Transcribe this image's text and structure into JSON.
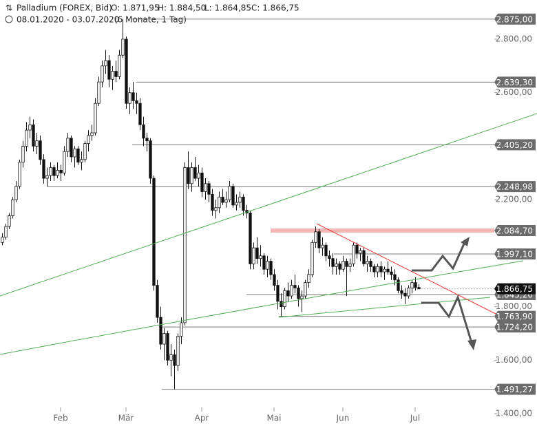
{
  "chart_data": {
    "type": "candlestick",
    "header": {
      "title": "Palladium (FOREX, Bid)",
      "open": "O: 1.871,95",
      "high": "H: 1.884,50",
      "low": "L: 1.864,85",
      "close": "C: 1.866,75",
      "range": "08.01.2020 - 03.07.2020",
      "period": "(6 Monate, 1 Tag)"
    },
    "ylim": [
      1390,
      2895
    ],
    "yticks": [
      {
        "value": 2800,
        "label": "2.800,00"
      },
      {
        "value": 2600,
        "label": "2.600,00"
      },
      {
        "value": 2200,
        "label": "2.200,00"
      },
      {
        "value": 1800,
        "label": "1.800,00"
      },
      {
        "value": 1600,
        "label": "1.600,00"
      },
      {
        "value": 1400,
        "label": "1.400,00"
      }
    ],
    "xlim": [
      0,
      143
    ],
    "xticks": [
      {
        "value": 17,
        "label": "Feb"
      },
      {
        "value": 36,
        "label": "Mär"
      },
      {
        "value": 58,
        "label": "Apr"
      },
      {
        "value": 79,
        "label": "Mai"
      },
      {
        "value": 99,
        "label": "Jun"
      },
      {
        "value": 120,
        "label": "Jul"
      }
    ],
    "levels": [
      {
        "value": 2875,
        "label": "2.875,00"
      },
      {
        "value": 2639.3,
        "label": "2.639,30"
      },
      {
        "value": 2405.2,
        "label": "2.405,20"
      },
      {
        "value": 2248.98,
        "label": "2.248,98"
      },
      {
        "value": 2084.7,
        "label": "2.084,70"
      },
      {
        "value": 1997.1,
        "label": "1.997,10"
      },
      {
        "value": 1845.2,
        "label": "1.845,20"
      },
      {
        "value": 1763.9,
        "label": "1.763,90"
      },
      {
        "value": 1724.2,
        "label": "1.724,20"
      },
      {
        "value": 1491.27,
        "label": "1.491,27"
      }
    ],
    "current": {
      "value": 1866.75,
      "label": "1.866,75"
    },
    "candles": [
      [
        2040,
        2075,
        2030,
        2060
      ],
      [
        2060,
        2110,
        2050,
        2100
      ],
      [
        2100,
        2150,
        2090,
        2140
      ],
      [
        2140,
        2210,
        2130,
        2200
      ],
      [
        2200,
        2270,
        2190,
        2250
      ],
      [
        2250,
        2350,
        2240,
        2340
      ],
      [
        2340,
        2420,
        2320,
        2400
      ],
      [
        2400,
        2490,
        2380,
        2460
      ],
      [
        2460,
        2510,
        2430,
        2480
      ],
      [
        2480,
        2500,
        2380,
        2400
      ],
      [
        2400,
        2450,
        2370,
        2420
      ],
      [
        2420,
        2440,
        2330,
        2350
      ],
      [
        2350,
        2370,
        2260,
        2280
      ],
      [
        2280,
        2320,
        2250,
        2290
      ],
      [
        2290,
        2340,
        2270,
        2320
      ],
      [
        2320,
        2330,
        2270,
        2290
      ],
      [
        2290,
        2340,
        2280,
        2310
      ],
      [
        2310,
        2330,
        2270,
        2300
      ],
      [
        2300,
        2400,
        2290,
        2380
      ],
      [
        2380,
        2450,
        2360,
        2430
      ],
      [
        2430,
        2440,
        2340,
        2360
      ],
      [
        2360,
        2400,
        2320,
        2390
      ],
      [
        2390,
        2400,
        2330,
        2340
      ],
      [
        2340,
        2380,
        2310,
        2350
      ],
      [
        2350,
        2420,
        2340,
        2410
      ],
      [
        2410,
        2460,
        2380,
        2440
      ],
      [
        2440,
        2480,
        2420,
        2450
      ],
      [
        2450,
        2580,
        2440,
        2560
      ],
      [
        2560,
        2660,
        2550,
        2640
      ],
      [
        2640,
        2720,
        2620,
        2700
      ],
      [
        2700,
        2760,
        2670,
        2720
      ],
      [
        2720,
        2740,
        2620,
        2650
      ],
      [
        2650,
        2700,
        2610,
        2680
      ],
      [
        2680,
        2720,
        2640,
        2660
      ],
      [
        2660,
        2760,
        2650,
        2740
      ],
      [
        2740,
        2875,
        2730,
        2800
      ],
      [
        2800,
        2810,
        2540,
        2560
      ],
      [
        2560,
        2620,
        2520,
        2600
      ],
      [
        2600,
        2640,
        2540,
        2570
      ],
      [
        2570,
        2600,
        2520,
        2560
      ],
      [
        2560,
        2580,
        2460,
        2480
      ],
      [
        2480,
        2510,
        2400,
        2430
      ],
      [
        2430,
        2450,
        2380,
        2420
      ],
      [
        2420,
        2430,
        2260,
        2280
      ],
      [
        2280,
        2290,
        1860,
        1880
      ],
      [
        1880,
        1900,
        1740,
        1760
      ],
      [
        1760,
        1800,
        1640,
        1660
      ],
      [
        1660,
        1720,
        1600,
        1700
      ],
      [
        1700,
        1710,
        1580,
        1600
      ],
      [
        1600,
        1660,
        1540,
        1620
      ],
      [
        1620,
        1640,
        1491.27,
        1580
      ],
      [
        1580,
        1700,
        1560,
        1690
      ],
      [
        1690,
        1760,
        1660,
        1740
      ],
      [
        1740,
        2340,
        1730,
        2320
      ],
      [
        2320,
        2380,
        2240,
        2260
      ],
      [
        2260,
        2340,
        2230,
        2320
      ],
      [
        2320,
        2360,
        2270,
        2280
      ],
      [
        2280,
        2330,
        2250,
        2300
      ],
      [
        2300,
        2320,
        2210,
        2230
      ],
      [
        2230,
        2280,
        2200,
        2260
      ],
      [
        2260,
        2270,
        2190,
        2220
      ],
      [
        2220,
        2240,
        2140,
        2160
      ],
      [
        2160,
        2200,
        2130,
        2170
      ],
      [
        2170,
        2230,
        2150,
        2210
      ],
      [
        2210,
        2240,
        2180,
        2190
      ],
      [
        2190,
        2230,
        2170,
        2200
      ],
      [
        2200,
        2270,
        2190,
        2250
      ],
      [
        2250,
        2260,
        2170,
        2180
      ],
      [
        2180,
        2220,
        2160,
        2190
      ],
      [
        2190,
        2230,
        2170,
        2210
      ],
      [
        2210,
        2220,
        2140,
        2160
      ],
      [
        2160,
        2180,
        2130,
        2150
      ],
      [
        2150,
        2160,
        1940,
        1960
      ],
      [
        1960,
        2040,
        1940,
        2020
      ],
      [
        2020,
        2060,
        1960,
        1980
      ],
      [
        1980,
        2030,
        1950,
        1990
      ],
      [
        1990,
        2000,
        1920,
        1940
      ],
      [
        1940,
        1990,
        1910,
        1970
      ],
      [
        1970,
        1980,
        1900,
        1920
      ],
      [
        1920,
        1940,
        1860,
        1880
      ],
      [
        1880,
        1900,
        1790,
        1820
      ],
      [
        1820,
        1850,
        1763.9,
        1800
      ],
      [
        1800,
        1870,
        1790,
        1860
      ],
      [
        1860,
        1890,
        1820,
        1840
      ],
      [
        1840,
        1900,
        1830,
        1880
      ],
      [
        1880,
        1920,
        1850,
        1870
      ],
      [
        1870,
        1880,
        1800,
        1830
      ],
      [
        1830,
        1860,
        1780,
        1840
      ],
      [
        1840,
        1900,
        1830,
        1890
      ],
      [
        1890,
        1940,
        1870,
        1920
      ],
      [
        1920,
        2050,
        1910,
        2040
      ],
      [
        2040,
        2100,
        2020,
        2080
      ],
      [
        2080,
        2090,
        2000,
        2020
      ],
      [
        2020,
        2060,
        1990,
        2030
      ],
      [
        2030,
        2040,
        1970,
        1990
      ],
      [
        1990,
        2010,
        1950,
        1980
      ],
      [
        1980,
        2000,
        1920,
        1950
      ],
      [
        1950,
        1980,
        1920,
        1960
      ],
      [
        1960,
        1970,
        1920,
        1940
      ],
      [
        1940,
        1990,
        1930,
        1970
      ],
      [
        1970,
        1980,
        1840,
        1950
      ],
      [
        1950,
        1980,
        1930,
        1960
      ],
      [
        1960,
        2040,
        1950,
        2030
      ],
      [
        2030,
        2040,
        1980,
        2000
      ],
      [
        2000,
        2020,
        1970,
        2010
      ],
      [
        2010,
        2020,
        1950,
        1960
      ],
      [
        1960,
        1990,
        1930,
        1970
      ],
      [
        1970,
        1980,
        1930,
        1950
      ],
      [
        1950,
        1960,
        1910,
        1930
      ],
      [
        1930,
        1960,
        1910,
        1950
      ],
      [
        1950,
        1970,
        1910,
        1930
      ],
      [
        1930,
        1950,
        1900,
        1940
      ],
      [
        1940,
        1970,
        1920,
        1930
      ],
      [
        1930,
        1950,
        1900,
        1920
      ],
      [
        1920,
        1940,
        1880,
        1900
      ],
      [
        1900,
        1910,
        1850,
        1860
      ],
      [
        1860,
        1880,
        1830,
        1850
      ],
      [
        1850,
        1870,
        1810,
        1840
      ],
      [
        1840,
        1880,
        1830,
        1870
      ],
      [
        1870,
        1900,
        1850,
        1890
      ],
      [
        1890,
        1910,
        1860,
        1871.95
      ],
      [
        1871.95,
        1884.5,
        1864.85,
        1866.75
      ]
    ]
  }
}
